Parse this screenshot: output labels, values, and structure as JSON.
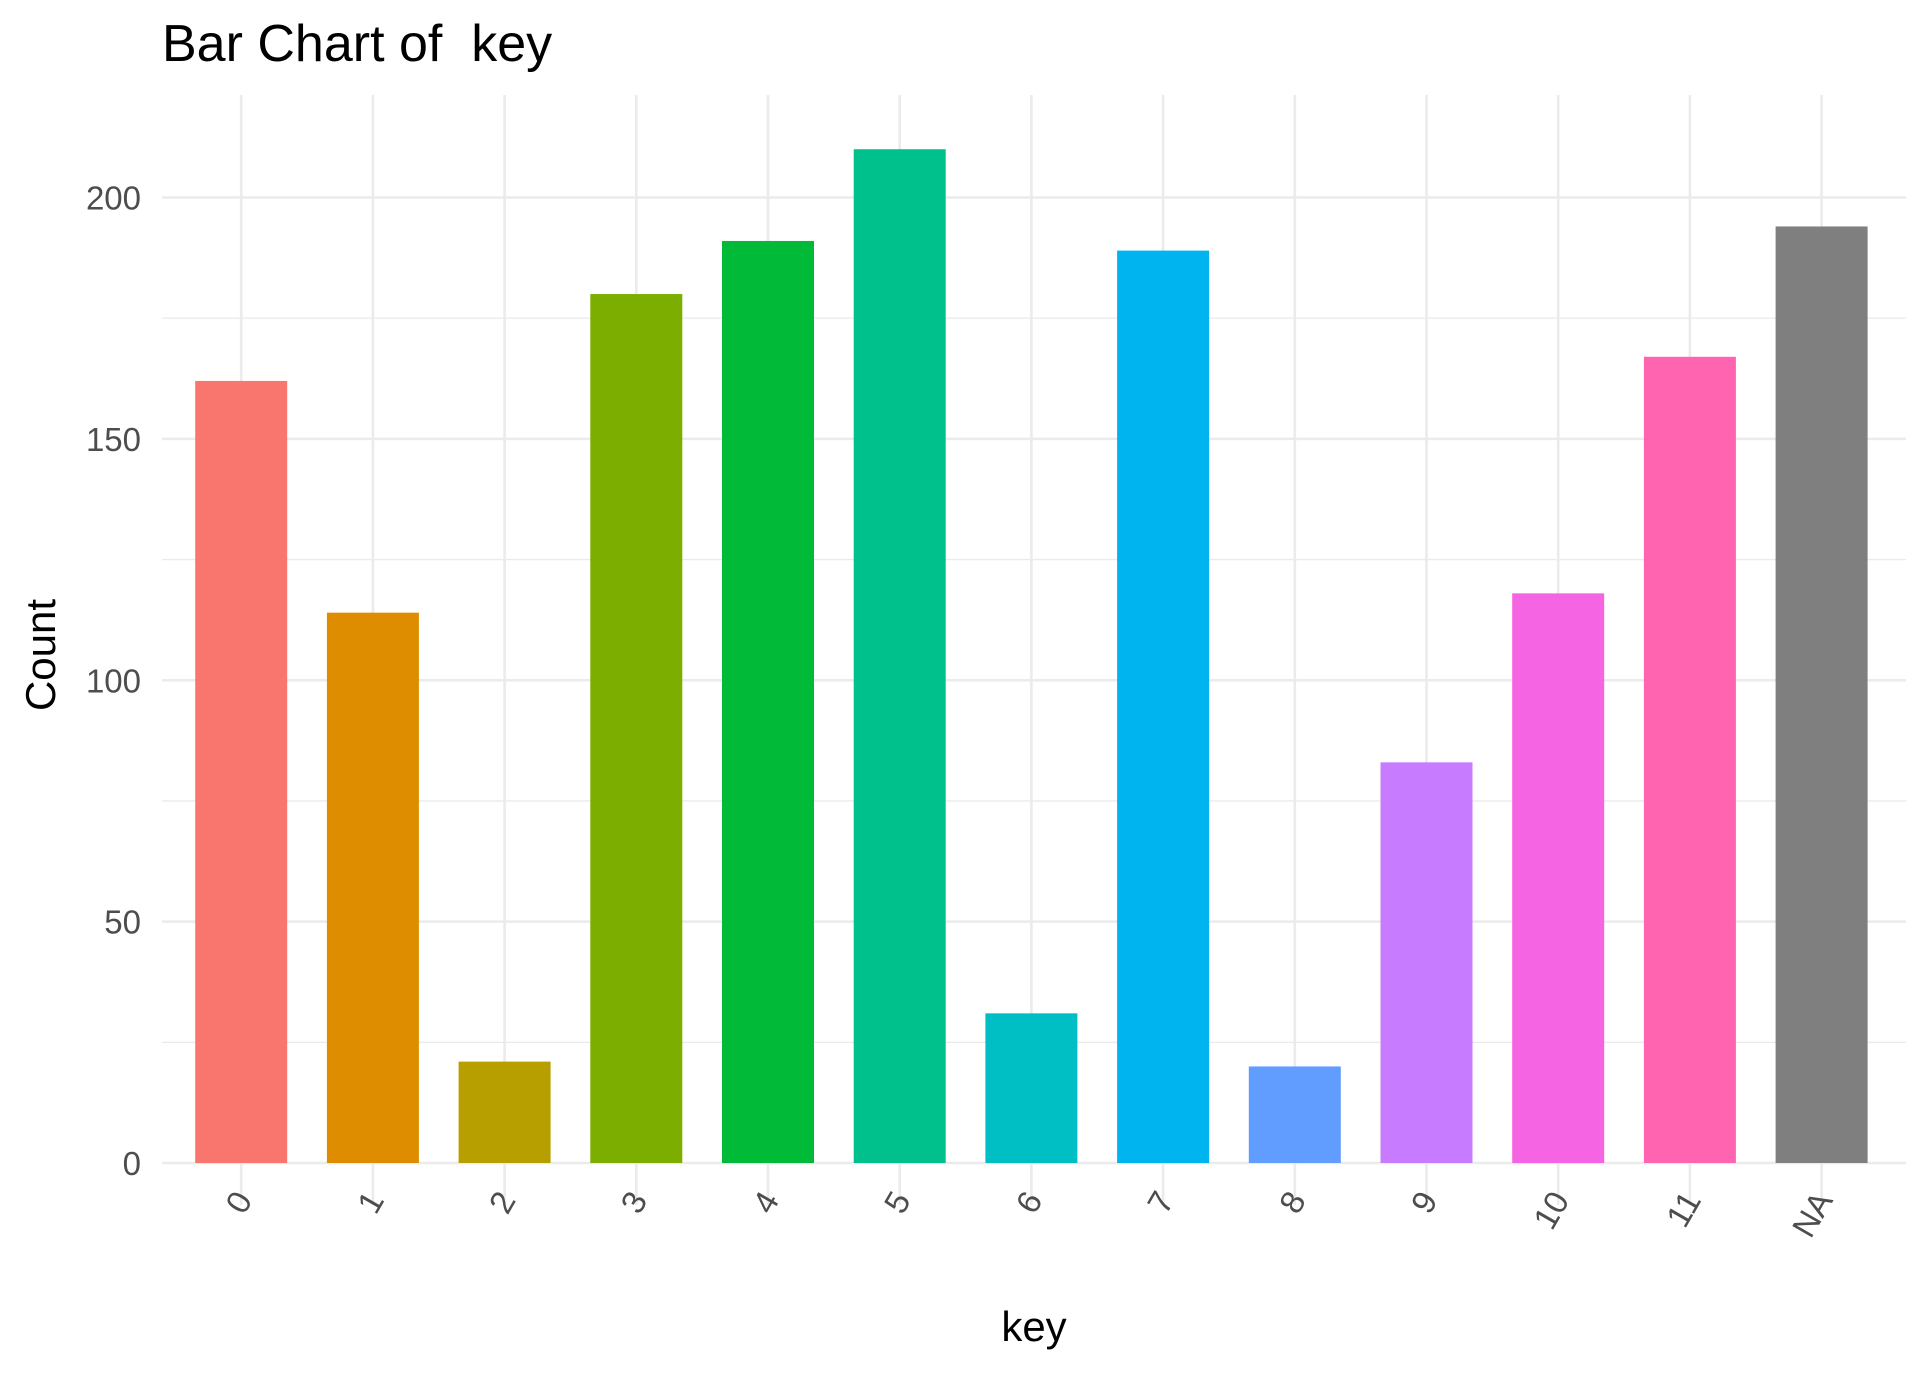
{
  "chart_data": {
    "type": "bar",
    "title": "Bar Chart of  key",
    "xlabel": "key",
    "ylabel": "Count",
    "categories": [
      "0",
      "1",
      "2",
      "3",
      "4",
      "5",
      "6",
      "7",
      "8",
      "9",
      "10",
      "11",
      "NA"
    ],
    "values": [
      162,
      114,
      21,
      180,
      191,
      210,
      31,
      189,
      20,
      83,
      118,
      167,
      194
    ],
    "colors": [
      "#F8766D",
      "#DE8C00",
      "#B79F00",
      "#7CAE00",
      "#00BA38",
      "#00C08B",
      "#00BFC4",
      "#00B4F0",
      "#619CFF",
      "#C77CFF",
      "#F564E3",
      "#FF64B0",
      "#7F7F7F"
    ],
    "ylim": [
      0,
      220
    ],
    "yticks": [
      0,
      50,
      100,
      150,
      200
    ],
    "ytick_labels": [
      "0",
      "50",
      "100",
      "150",
      "200"
    ],
    "grid": true,
    "legend": "none",
    "x_tick_rotation": "45-degree"
  }
}
